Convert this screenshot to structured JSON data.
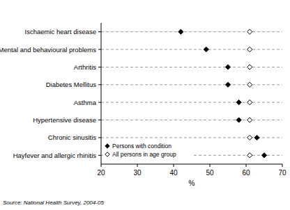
{
  "chart_data": {
    "type": "dot",
    "orientation": "horizontal",
    "categories": [
      "Ischaemic heart disease",
      "Mental and behavioural problems",
      "Arthritis",
      "Diabetes Mellitus",
      "Asthma",
      "Hypertensive disease",
      "Chronic sinusitis",
      "Hayfever and allergic rhinitis"
    ],
    "series": [
      {
        "name": "Persons with condition",
        "color": "#000000",
        "marker": "diamond-filled",
        "values": [
          42,
          49,
          55,
          55,
          58,
          58,
          63,
          65
        ]
      },
      {
        "name": "All persons in age group",
        "color": "#000000",
        "marker": "diamond-open",
        "values": [
          61,
          61,
          61,
          61,
          61,
          61,
          61,
          61
        ]
      }
    ],
    "xlim": [
      20,
      70
    ],
    "xticks": [
      20,
      30,
      40,
      50,
      60,
      70
    ],
    "x_label": "%",
    "grid": true,
    "legend": "lower left",
    "source": "Source: National Health Survey, 2004-05"
  }
}
